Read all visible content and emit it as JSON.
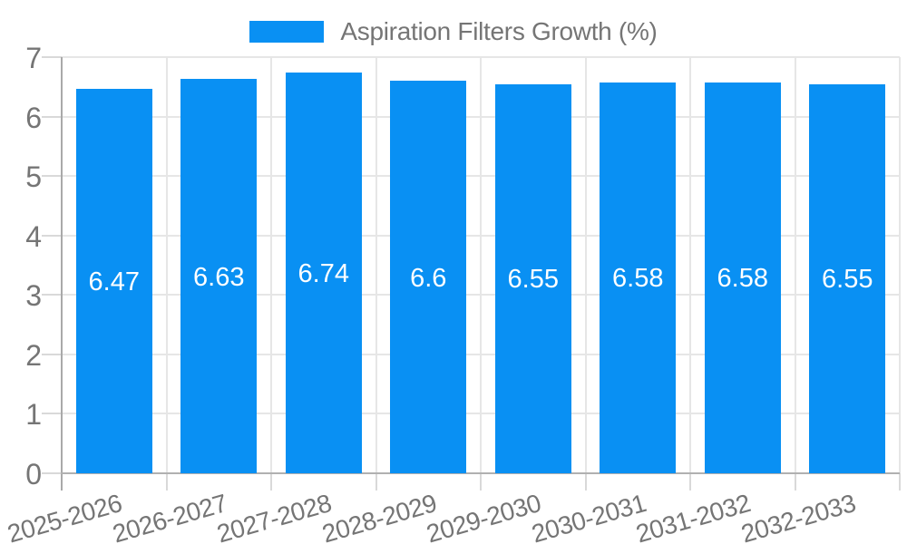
{
  "legend": {
    "label": "Aspiration Filters Growth (%)",
    "swatch_color": "#0990f3"
  },
  "chart_data": {
    "type": "bar",
    "title": "",
    "legend_entries": [
      "Aspiration Filters Growth (%)"
    ],
    "legend_position": "top",
    "categories": [
      "2025-2026",
      "2026-2027",
      "2027-2028",
      "2028-2029",
      "2029-2030",
      "2030-2031",
      "2031-2032",
      "2032-2033"
    ],
    "series": [
      {
        "name": "Aspiration Filters Growth (%)",
        "values": [
          6.47,
          6.63,
          6.74,
          6.6,
          6.55,
          6.58,
          6.58,
          6.55
        ],
        "value_labels": [
          "6.47",
          "6.63",
          "6.74",
          "6.6",
          "6.55",
          "6.58",
          "6.58",
          "6.55"
        ]
      }
    ],
    "xlabel": "",
    "ylabel": "",
    "ylim": [
      0,
      7
    ],
    "y_ticks": [
      0,
      1,
      2,
      3,
      4,
      5,
      6,
      7
    ],
    "y_tick_labels": [
      "0",
      "1",
      "2",
      "3",
      "4",
      "5",
      "6",
      "7"
    ],
    "grid": true,
    "bar_color": "#0990f3",
    "value_label_color": "#ffffff",
    "axis_text_color": "#757575"
  }
}
